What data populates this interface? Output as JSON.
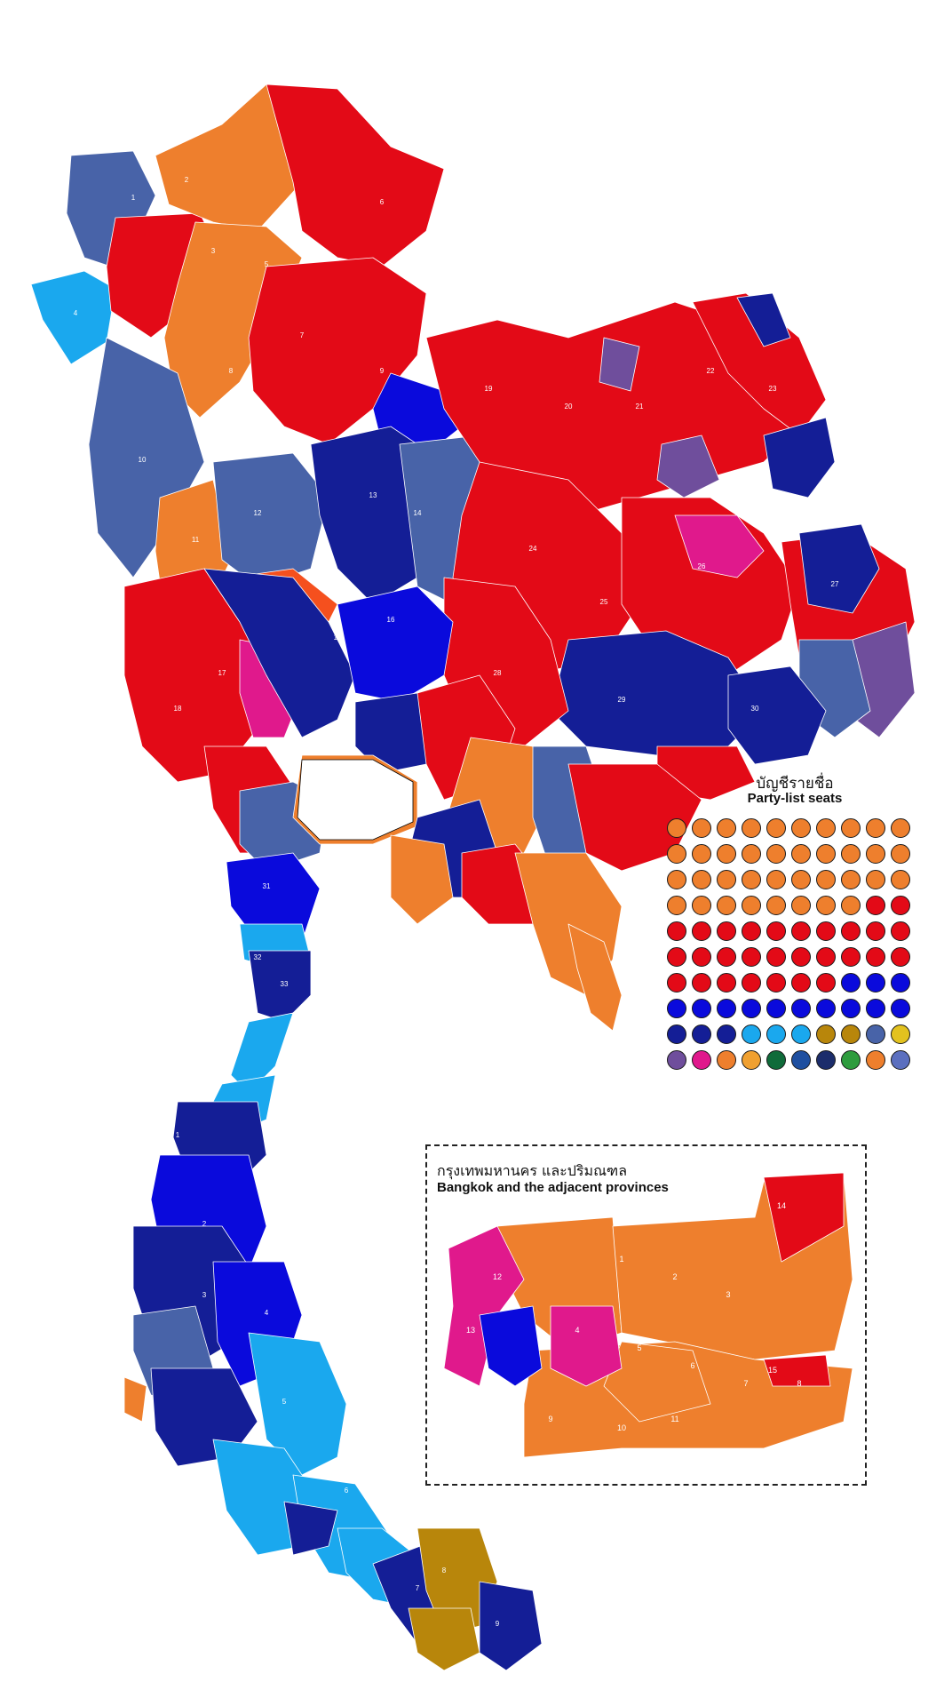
{
  "legend": {
    "title_th": "บัญชีรายชื่อ",
    "title_en": "Party-list seats",
    "seat_rows": [
      [
        "#EE7F2D",
        "#EE7F2D",
        "#EE7F2D",
        "#EE7F2D",
        "#EE7F2D",
        "#EE7F2D",
        "#EE7F2D",
        "#EE7F2D",
        "#EE7F2D",
        "#EE7F2D"
      ],
      [
        "#EE7F2D",
        "#EE7F2D",
        "#EE7F2D",
        "#EE7F2D",
        "#EE7F2D",
        "#EE7F2D",
        "#EE7F2D",
        "#EE7F2D",
        "#EE7F2D",
        "#EE7F2D"
      ],
      [
        "#EE7F2D",
        "#EE7F2D",
        "#EE7F2D",
        "#EE7F2D",
        "#EE7F2D",
        "#EE7F2D",
        "#EE7F2D",
        "#EE7F2D",
        "#EE7F2D",
        "#EE7F2D"
      ],
      [
        "#EE7F2D",
        "#EE7F2D",
        "#EE7F2D",
        "#EE7F2D",
        "#EE7F2D",
        "#EE7F2D",
        "#EE7F2D",
        "#EE7F2D",
        "#E30A17",
        "#E30A17"
      ],
      [
        "#E30A17",
        "#E30A17",
        "#E30A17",
        "#E30A17",
        "#E30A17",
        "#E30A17",
        "#E30A17",
        "#E30A17",
        "#E30A17",
        "#E30A17"
      ],
      [
        "#E30A17",
        "#E30A17",
        "#E30A17",
        "#E30A17",
        "#E30A17",
        "#E30A17",
        "#E30A17",
        "#E30A17",
        "#E30A17",
        "#E30A17"
      ],
      [
        "#E30A17",
        "#E30A17",
        "#E30A17",
        "#E30A17",
        "#E30A17",
        "#E30A17",
        "#E30A17",
        "#0A0ADC",
        "#0A0ADC",
        "#0A0ADC"
      ],
      [
        "#0A0ADC",
        "#0A0ADC",
        "#0A0ADC",
        "#0A0ADC",
        "#0A0ADC",
        "#0A0ADC",
        "#0A0ADC",
        "#0A0ADC",
        "#0A0ADC",
        "#0A0ADC"
      ],
      [
        "#141E96",
        "#141E96",
        "#141E96",
        "#1AA8EE",
        "#1AA8EE",
        "#1AA8EE",
        "#B8860B",
        "#B8860B",
        "#4863A8",
        "#E3C21F"
      ],
      [
        "#6F4E9C",
        "#E0198C",
        "#EE7F2D",
        "#F0A030",
        "#0F6B3A",
        "#1E4FA0",
        "#1C2D6B",
        "#2E9C3E",
        "#EE7F2D",
        "#5B6FBF"
      ]
    ]
  },
  "inset": {
    "title_th": "กรุงเทพมหานคร และปริมณฑล",
    "title_en": "Bangkok and the adjacent provinces"
  },
  "party_colors": {
    "orange": "#EE7F2D",
    "red": "#E30A17",
    "bright_blue": "#0A0ADC",
    "navy": "#141E96",
    "steel_blue": "#4863A8",
    "sky_blue": "#1AA8EE",
    "magenta": "#E0198C",
    "dark_gold": "#B8860B",
    "purple": "#6F4E9C",
    "orange_red": "#F5501E"
  },
  "district_labels": [
    "1",
    "2",
    "3",
    "4",
    "5",
    "6",
    "7",
    "8",
    "9",
    "10",
    "11",
    "12",
    "13",
    "14",
    "15",
    "16",
    "17",
    "18",
    "19",
    "20",
    "21",
    "22",
    "23",
    "24",
    "25",
    "26",
    "27",
    "28",
    "29",
    "30",
    "31",
    "32",
    "33"
  ]
}
